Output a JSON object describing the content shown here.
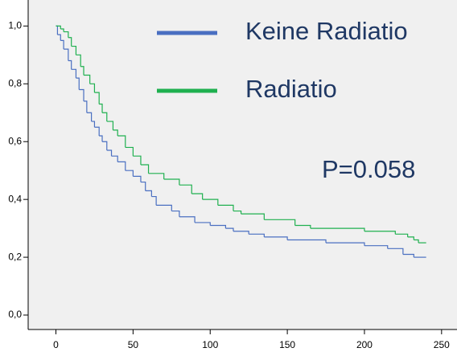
{
  "chart_data": {
    "type": "step",
    "xlim": [
      -18,
      260
    ],
    "xticks": [
      0,
      50,
      100,
      150,
      200,
      250
    ],
    "ylim": [
      -0.05,
      1.09
    ],
    "yticks": [
      {
        "value": 0,
        "label": "0,0"
      },
      {
        "value": 0.2,
        "label": "0,2"
      },
      {
        "value": 0.4,
        "label": "0,4"
      },
      {
        "value": 0.6,
        "label": "0,6"
      },
      {
        "value": 0.8,
        "label": "0,8"
      },
      {
        "value": 1,
        "label": "1,0"
      }
    ],
    "annotation": "P=0.058",
    "series": [
      {
        "name": "Keine Radiatio",
        "color": "#4a6fc1",
        "x": [
          0,
          1,
          3,
          5,
          8,
          10,
          13,
          15,
          18,
          20,
          23,
          25,
          28,
          30,
          33,
          36,
          40,
          45,
          50,
          55,
          58,
          62,
          65,
          75,
          80,
          90,
          100,
          110,
          115,
          125,
          135,
          150,
          175,
          200,
          215,
          225,
          232,
          240
        ],
        "values": [
          1.0,
          0.97,
          0.95,
          0.92,
          0.88,
          0.85,
          0.82,
          0.78,
          0.74,
          0.7,
          0.67,
          0.65,
          0.62,
          0.6,
          0.57,
          0.55,
          0.53,
          0.5,
          0.48,
          0.46,
          0.43,
          0.41,
          0.38,
          0.36,
          0.34,
          0.32,
          0.31,
          0.3,
          0.29,
          0.28,
          0.27,
          0.26,
          0.25,
          0.24,
          0.23,
          0.21,
          0.2,
          0.2
        ]
      },
      {
        "name": "Radiatio",
        "color": "#1fb04f",
        "x": [
          0,
          3,
          5,
          8,
          10,
          13,
          16,
          18,
          22,
          25,
          28,
          30,
          33,
          37,
          40,
          45,
          50,
          55,
          60,
          70,
          80,
          88,
          95,
          105,
          115,
          120,
          135,
          155,
          165,
          200,
          220,
          228,
          232,
          235,
          240
        ],
        "values": [
          1.0,
          0.99,
          0.98,
          0.96,
          0.93,
          0.9,
          0.86,
          0.83,
          0.8,
          0.77,
          0.73,
          0.7,
          0.67,
          0.64,
          0.62,
          0.58,
          0.55,
          0.52,
          0.49,
          0.47,
          0.45,
          0.42,
          0.4,
          0.38,
          0.36,
          0.35,
          0.33,
          0.31,
          0.3,
          0.29,
          0.28,
          0.27,
          0.26,
          0.25,
          0.25
        ]
      }
    ]
  }
}
